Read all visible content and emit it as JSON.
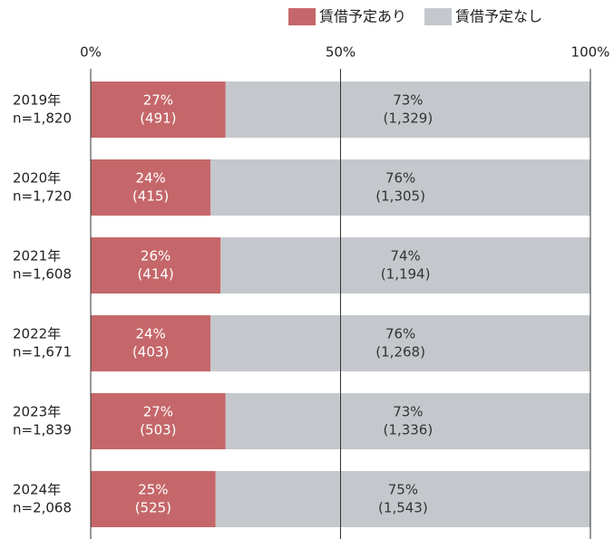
{
  "chart_data": {
    "type": "stacked_bar_horizontal",
    "categories": [
      [
        "2019年",
        "n=1,820"
      ],
      [
        "2020年",
        "n=1,720"
      ],
      [
        "2021年",
        "n=1,608"
      ],
      [
        "2022年",
        "n=1,671"
      ],
      [
        "2023年",
        "n=1,839"
      ],
      [
        "2024年",
        "n=2,068"
      ]
    ],
    "series": [
      {
        "name": "賃借予定あり",
        "color": "#c5676a",
        "values": [
          27,
          24,
          26,
          24,
          27,
          25
        ],
        "value_labels": [
          "27%",
          "24%",
          "26%",
          "24%",
          "27%",
          "25%"
        ],
        "count_labels": [
          "(491)",
          "(415)",
          "(414)",
          "(403)",
          "(503)",
          "(525)"
        ]
      },
      {
        "name": "賃借予定なし",
        "color": "#c4c8cc",
        "values": [
          73,
          76,
          74,
          76,
          73,
          75
        ],
        "value_labels": [
          "73%",
          "76%",
          "74%",
          "76%",
          "73%",
          "75%"
        ],
        "count_labels": [
          "(1,329)",
          "(1,305)",
          "(1,194)",
          "(1,268)",
          "(1,336)",
          "(1,543)"
        ]
      }
    ],
    "xlim": [
      0,
      100
    ],
    "xticks": [
      {
        "value": 0,
        "label": "0%"
      },
      {
        "value": 50,
        "label": "50%"
      },
      {
        "value": 100,
        "label": "100%"
      }
    ],
    "grid": true,
    "legend": "top-right"
  }
}
